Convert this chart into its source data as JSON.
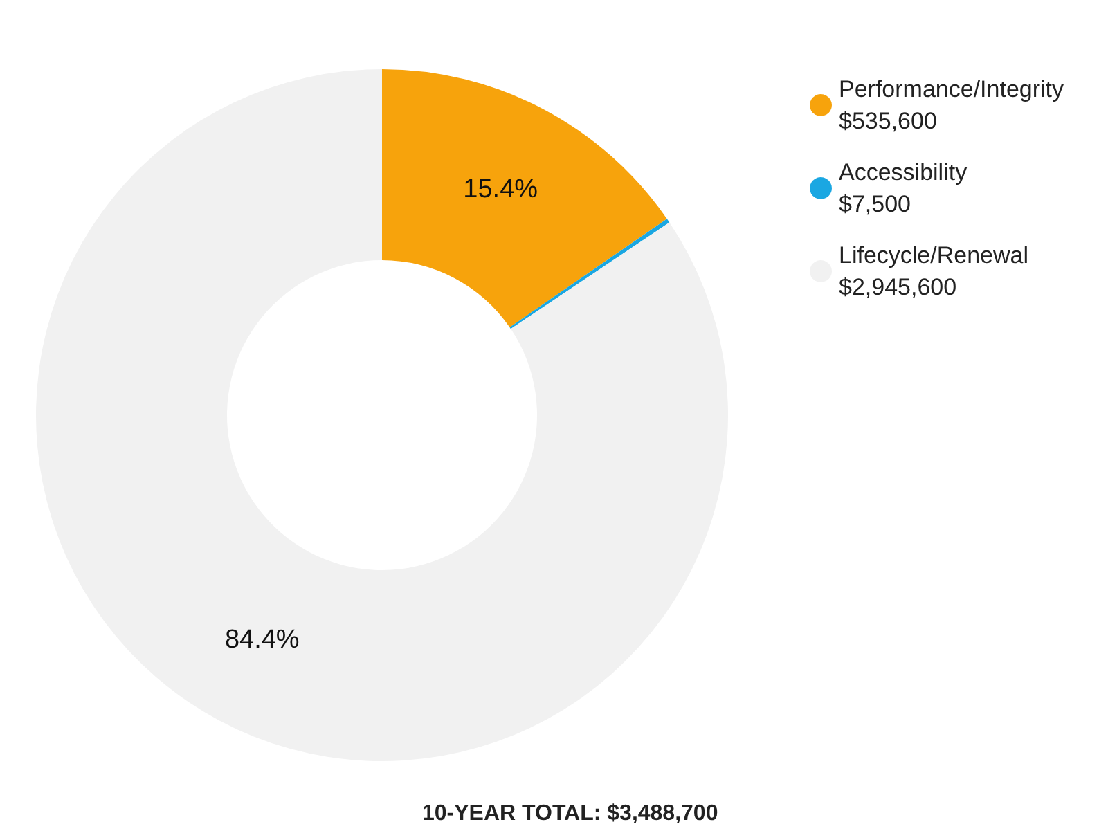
{
  "chart_data": {
    "type": "donut",
    "categories": [
      "Performance/Integrity\n$535,600",
      "Accessibility\n$7,500",
      "Lifecycle/Renewal\n$2,945,600"
    ],
    "values": [
      15.4,
      0.2,
      84.4
    ],
    "colors": [
      "#f7a30c",
      "#1aa7e2",
      "#f1f1f1"
    ],
    "value_labels": [
      "15.4%",
      null,
      "84.4%"
    ],
    "legend": "top right",
    "annotations": [
      "10-YEAR TOTAL: $3,488,700"
    ]
  }
}
